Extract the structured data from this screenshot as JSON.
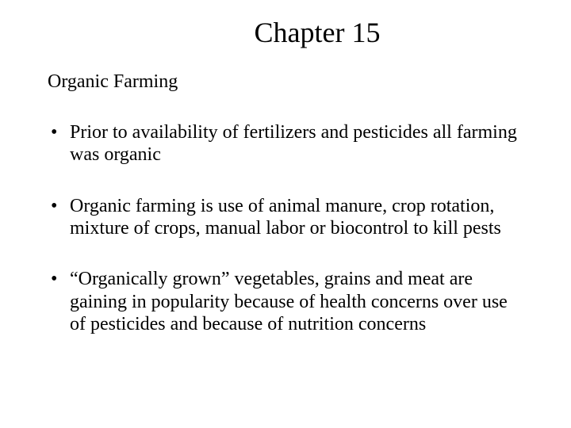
{
  "title": "Chapter 15",
  "subtitle": "Organic Farming",
  "bullets": [
    "Prior to availability of fertilizers and pesticides all farming was organic",
    "Organic farming is use of animal manure, crop rotation, mixture of crops, manual labor or biocontrol to kill pests",
    "“Organically grown” vegetables, grains and meat are gaining in popularity because of health concerns over use of pesticides and because of nutrition concerns"
  ],
  "colors": {
    "background": "#ffffff",
    "text": "#000000"
  },
  "typography": {
    "font_family": "Times New Roman",
    "title_fontsize": 36,
    "subtitle_fontsize": 24,
    "body_fontsize": 24
  }
}
